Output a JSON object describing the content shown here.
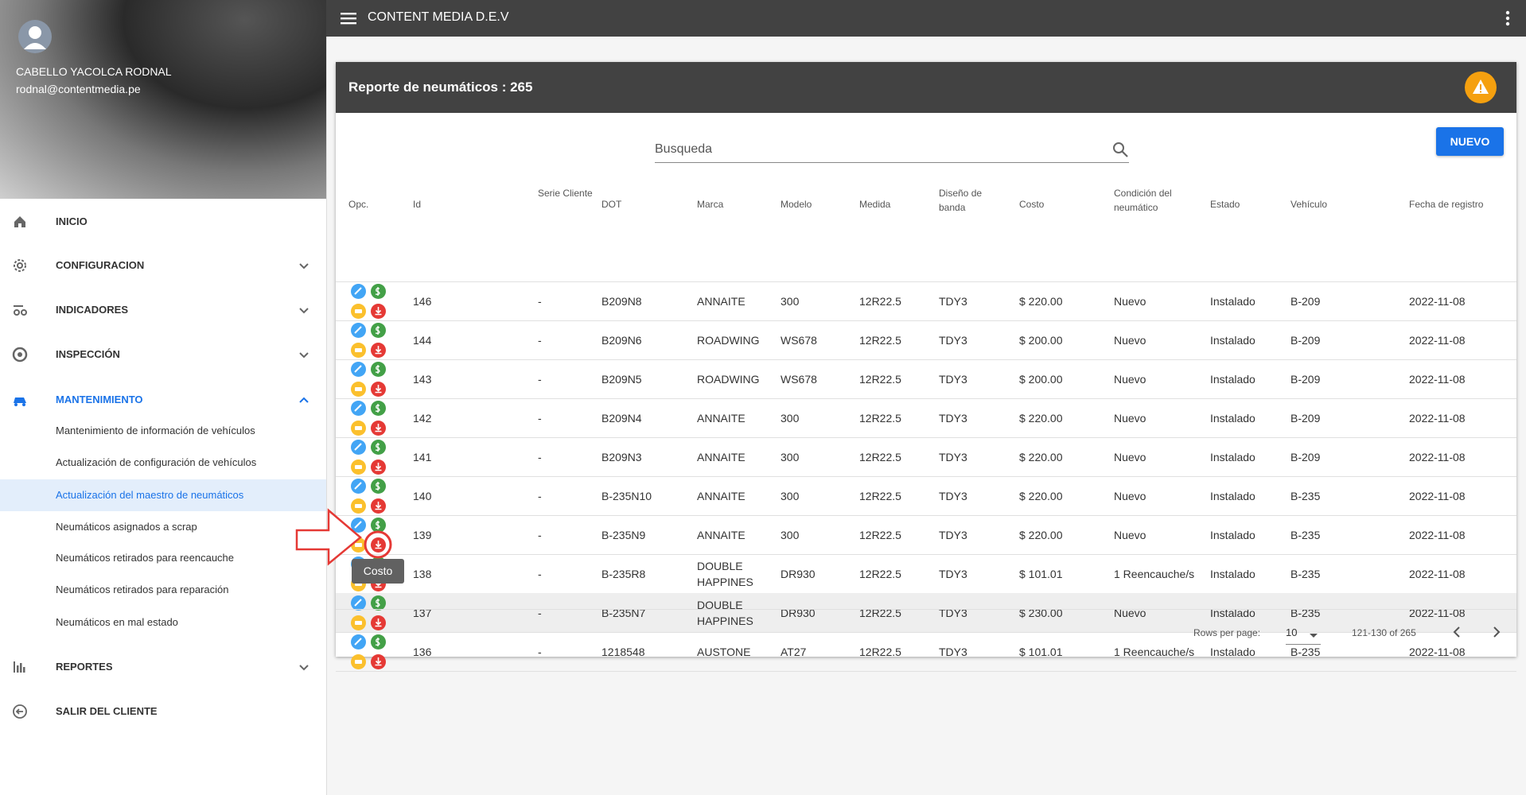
{
  "topbar": {
    "title": "CONTENT MEDIA D.E.V"
  },
  "user": {
    "name": "CABELLO YACOLCA RODNAL",
    "email": "rodnal@contentmedia.pe"
  },
  "nav": [
    "INICIO",
    "CONFIGURACION",
    "INDICADORES",
    "INSPECCIÓN",
    "MANTENIMIENTO",
    "REPORTES",
    "SALIR DEL CLIENTE"
  ],
  "submenu": [
    "Mantenimiento de información de vehículos",
    "Actualización de configuración de vehículos",
    "Actualización del maestro de neumáticos",
    "Neumáticos asignados a scrap",
    "Neumáticos retirados para reencauche",
    "Neumáticos retirados para reparación",
    "Neumáticos en mal estado"
  ],
  "card": {
    "title": "Reporte de neumáticos : 265",
    "search_placeholder": "Busqueda",
    "new_button": "NUEVO"
  },
  "table": {
    "headers": [
      "Opc.",
      "Id",
      "Serie Cliente",
      "DOT",
      "Marca",
      "Modelo",
      "Medida",
      "Diseño de banda",
      "Costo",
      "Condición del neumático",
      "Estado",
      "Vehículo",
      "Fecha de registro"
    ],
    "rows": [
      [
        "146",
        "-",
        "B209N8",
        "ANNAITE",
        "300",
        "12R22.5",
        "TDY3",
        "$ 220.00",
        "Nuevo",
        "Instalado",
        "B-209",
        "2022-11-08"
      ],
      [
        "144",
        "-",
        "B209N6",
        "ROADWING",
        "WS678",
        "12R22.5",
        "TDY3",
        "$ 200.00",
        "Nuevo",
        "Instalado",
        "B-209",
        "2022-11-08"
      ],
      [
        "143",
        "-",
        "B209N5",
        "ROADWING",
        "WS678",
        "12R22.5",
        "TDY3",
        "$ 200.00",
        "Nuevo",
        "Instalado",
        "B-209",
        "2022-11-08"
      ],
      [
        "142",
        "-",
        "B209N4",
        "ANNAITE",
        "300",
        "12R22.5",
        "TDY3",
        "$ 220.00",
        "Nuevo",
        "Instalado",
        "B-209",
        "2022-11-08"
      ],
      [
        "141",
        "-",
        "B209N3",
        "ANNAITE",
        "300",
        "12R22.5",
        "TDY3",
        "$ 220.00",
        "Nuevo",
        "Instalado",
        "B-209",
        "2022-11-08"
      ],
      [
        "140",
        "-",
        "B-235N10",
        "ANNAITE",
        "300",
        "12R22.5",
        "TDY3",
        "$ 220.00",
        "Nuevo",
        "Instalado",
        "B-235",
        "2022-11-08"
      ],
      [
        "139",
        "-",
        "B-235N9",
        "ANNAITE",
        "300",
        "12R22.5",
        "TDY3",
        "$ 220.00",
        "Nuevo",
        "Instalado",
        "B-235",
        "2022-11-08"
      ],
      [
        "138",
        "-",
        "B-235R8",
        "DOUBLE HAPPINES",
        "DR930",
        "12R22.5",
        "TDY3",
        "$ 101.01",
        "1 Reencauche/s",
        "Instalado",
        "B-235",
        "2022-11-08"
      ],
      [
        "137",
        "-",
        "B-235N7",
        "DOUBLE HAPPINES",
        "DR930",
        "12R22.5",
        "TDY3",
        "$ 230.00",
        "Nuevo",
        "Instalado",
        "B-235",
        "2022-11-08"
      ],
      [
        "136",
        "-",
        "1218548",
        "AUSTONE",
        "AT27",
        "12R22.5",
        "TDY3",
        "$ 101.01",
        "1 Reencauche/s",
        "Instalado",
        "B-235",
        "2022-11-08"
      ]
    ]
  },
  "tooltip": "Costo",
  "pagination": {
    "rows_per_page_label": "Rows per page:",
    "rows_per_page": "10",
    "range": "121-130 of 265"
  }
}
